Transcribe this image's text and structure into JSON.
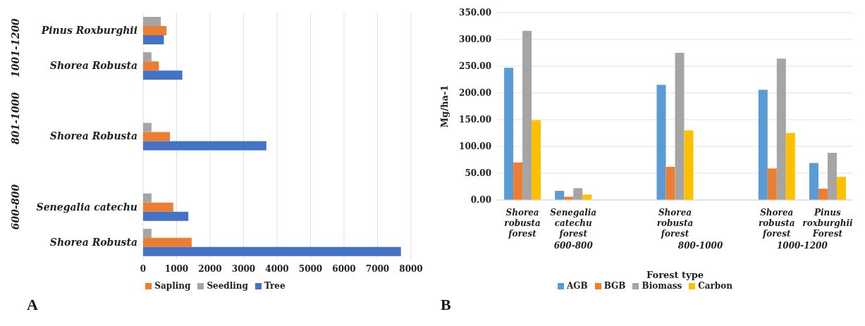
{
  "chart_data": [
    {
      "type": "bar",
      "orientation": "horizontal",
      "categories": [
        "Pinus Roxburghii",
        "Shorea Robusta",
        null,
        "Shorea Robusta",
        null,
        "Senegalia catechu",
        "Shorea Robusta"
      ],
      "series": [
        {
          "name": "Seedling",
          "color": "#a5a5a5",
          "values": [
            530,
            250,
            null,
            250,
            null,
            250,
            250
          ]
        },
        {
          "name": "Sapling",
          "color": "#ed7d31",
          "values": [
            700,
            470,
            null,
            800,
            null,
            900,
            1450
          ]
        },
        {
          "name": "Tree",
          "color": "#4472c4",
          "values": [
            620,
            1170,
            null,
            3680,
            null,
            1350,
            7700
          ]
        }
      ],
      "xlim": [
        0,
        8000
      ],
      "xticks": [
        0,
        1000,
        2000,
        3000,
        4000,
        5000,
        6000,
        7000,
        8000
      ],
      "grid": "x",
      "legend": "bottom",
      "annotations": [
        "1001-1200",
        "801-1000",
        "600-800",
        "A"
      ]
    },
    {
      "type": "bar",
      "categories": [
        "Shorea robusta forest",
        "Senegalia catechu forest",
        null,
        "Shorea robusta forest",
        null,
        "Shorea robusta forest",
        "Pinus roxburghii Forest"
      ],
      "series": [
        {
          "name": "AGB",
          "color": "#5b9bd5",
          "values": [
            247,
            17,
            null,
            215,
            null,
            206,
            69
          ]
        },
        {
          "name": "BGB",
          "color": "#ed7d31",
          "values": [
            70,
            6,
            null,
            62,
            null,
            59,
            21
          ]
        },
        {
          "name": "Biomass",
          "color": "#a5a5a5",
          "values": [
            316,
            22,
            null,
            275,
            null,
            264,
            88
          ]
        },
        {
          "name": "Carbon",
          "color": "#ffc000",
          "values": [
            149,
            10,
            null,
            130,
            null,
            125,
            43
          ]
        }
      ],
      "xlabel": "Forest type",
      "ylabel": "Mg/ha-1",
      "ylim": [
        0,
        350
      ],
      "yticks": [
        {
          "value": 0,
          "label": "0.00"
        },
        {
          "value": 50,
          "label": "50.00"
        },
        {
          "value": 100,
          "label": "100.00"
        },
        {
          "value": 150,
          "label": "150.00"
        },
        {
          "value": 200,
          "label": "200.00"
        },
        {
          "value": 250,
          "label": "250.00"
        },
        {
          "value": 300,
          "label": "300.00"
        },
        {
          "value": 350,
          "label": "350.00"
        }
      ],
      "grid": "y",
      "legend": "bottom",
      "annotations": [
        "600-800",
        "800-1000",
        "1000-1200",
        "B"
      ]
    }
  ]
}
